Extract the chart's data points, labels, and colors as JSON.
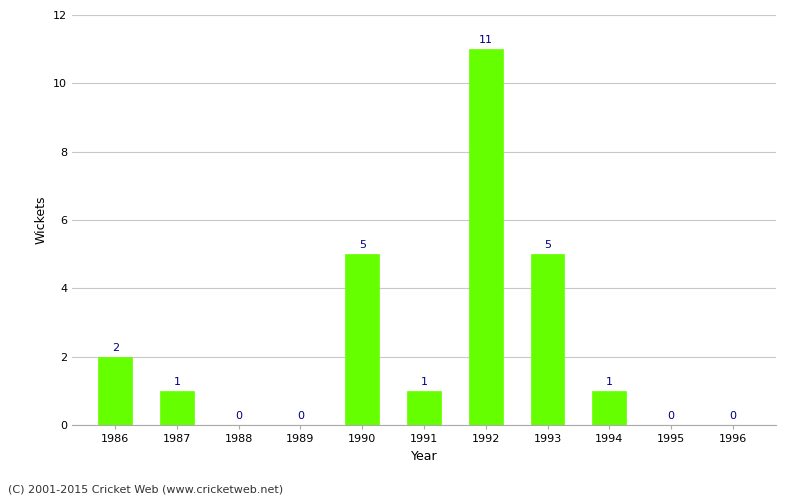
{
  "years": [
    1986,
    1987,
    1988,
    1989,
    1990,
    1991,
    1992,
    1993,
    1994,
    1995,
    1996
  ],
  "wickets": [
    2,
    1,
    0,
    0,
    5,
    1,
    11,
    5,
    1,
    0,
    0
  ],
  "bar_color": "#66ff00",
  "bar_edge_color": "#66ff00",
  "label_color": "#000080",
  "xlabel": "Year",
  "ylabel": "Wickets",
  "ylim": [
    0,
    12
  ],
  "yticks": [
    0,
    2,
    4,
    6,
    8,
    10,
    12
  ],
  "background_color": "#ffffff",
  "grid_color": "#c8c8c8",
  "footer_text": "(C) 2001-2015 Cricket Web (www.cricketweb.net)",
  "label_fontsize": 8,
  "axis_label_fontsize": 9,
  "tick_fontsize": 8,
  "footer_fontsize": 8,
  "bar_width": 0.55
}
